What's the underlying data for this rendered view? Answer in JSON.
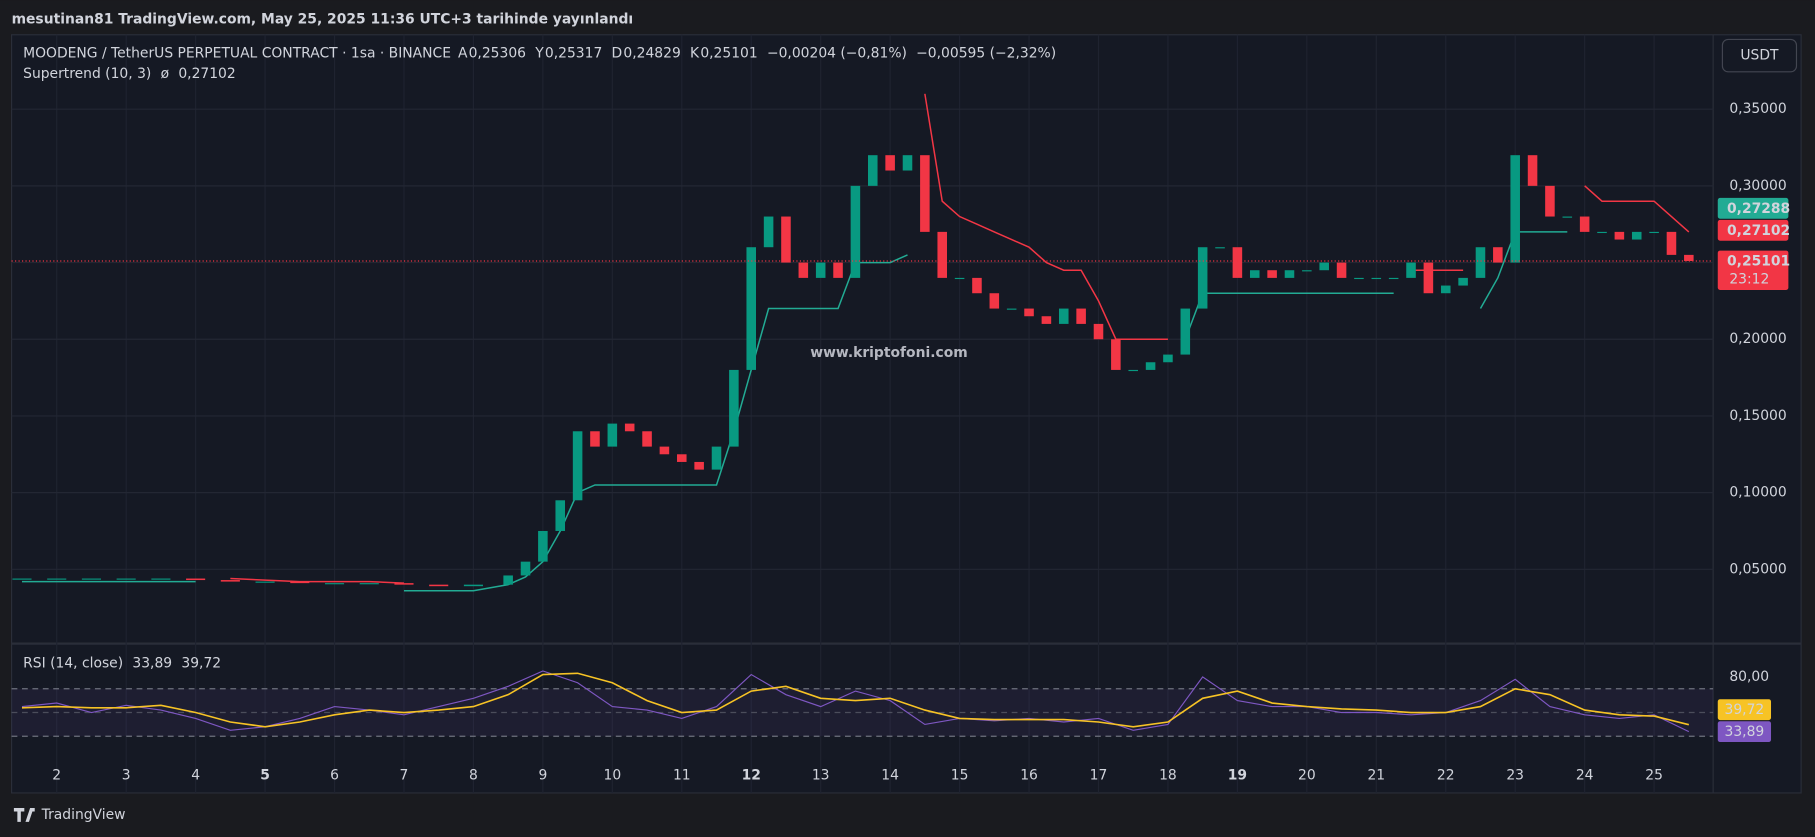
{
  "header": {
    "title": "mesutinan81 TradingView.com, May 25, 2025 11:36 UTC+3 tarihinde yayınlandı"
  },
  "currency_button": "USDT",
  "watermark": "www.kriptofoni.com",
  "footer": "TradingView",
  "chart_data": [
    {
      "type": "candlestick",
      "title": "MOODENG / TetherUS PERPETUAL CONTRACT · 1sa · BINANCE",
      "ohlc_legend": [
        {
          "key": "A",
          "value": "0,25306"
        },
        {
          "key": "Y",
          "value": "0,25317"
        },
        {
          "key": "D",
          "value": "0,24829"
        },
        {
          "key": "K",
          "value": "0,25101"
        }
      ],
      "changes": [
        "−0,00204 (−0,81%)",
        "−0,00595 (−2,32%)"
      ],
      "color_up": "#089981",
      "color_down": "#f23645",
      "x": [
        1.5,
        2,
        2.5,
        3,
        3.5,
        4,
        4.5,
        5,
        5.5,
        6,
        6.5,
        7,
        7.5,
        8,
        8.5,
        8.75,
        9,
        9.25,
        9.5,
        9.75,
        10,
        10.25,
        10.5,
        10.75,
        11,
        11.25,
        11.5,
        11.75,
        12,
        12.25,
        12.5,
        12.75,
        13,
        13.25,
        13.5,
        13.75,
        14,
        14.25,
        14.5,
        14.75,
        15,
        15.25,
        15.5,
        15.75,
        16,
        16.25,
        16.5,
        16.75,
        17,
        17.25,
        17.5,
        17.75,
        18,
        18.25,
        18.5,
        18.75,
        19,
        19.25,
        19.5,
        19.75,
        20,
        20.25,
        20.5,
        20.75,
        21,
        21.25,
        21.5,
        21.75,
        22,
        22.25,
        22.5,
        22.75,
        23,
        23.25,
        23.5,
        23.75,
        24,
        24.25,
        24.5,
        24.75,
        25,
        25.25,
        25.5
      ],
      "values": [
        0.044,
        0.044,
        0.044,
        0.044,
        0.044,
        0.043,
        0.042,
        0.042,
        0.041,
        0.041,
        0.041,
        0.04,
        0.039,
        0.04,
        0.046,
        0.055,
        0.075,
        0.095,
        0.14,
        0.13,
        0.145,
        0.14,
        0.13,
        0.125,
        0.12,
        0.115,
        0.13,
        0.18,
        0.26,
        0.28,
        0.25,
        0.24,
        0.25,
        0.24,
        0.3,
        0.32,
        0.31,
        0.32,
        0.27,
        0.24,
        0.24,
        0.23,
        0.22,
        0.22,
        0.215,
        0.21,
        0.22,
        0.21,
        0.2,
        0.18,
        0.18,
        0.185,
        0.19,
        0.22,
        0.26,
        0.26,
        0.24,
        0.245,
        0.24,
        0.245,
        0.245,
        0.25,
        0.24,
        0.24,
        0.24,
        0.24,
        0.25,
        0.23,
        0.235,
        0.24,
        0.26,
        0.25,
        0.32,
        0.3,
        0.28,
        0.28,
        0.27,
        0.27,
        0.265,
        0.27,
        0.27,
        0.255,
        0.251
      ],
      "supertrend": {
        "name": "Supertrend (10, 3)",
        "symbol": "ø",
        "value_label": "0,27102",
        "up_color": "#22ab94",
        "down_color": "#f23645",
        "up": [
          0.042,
          0.042,
          0.042,
          0.042,
          0.042,
          0.042,
          null,
          null,
          null,
          null,
          null,
          0.036,
          0.036,
          0.036,
          0.04,
          0.045,
          0.055,
          0.075,
          0.1,
          0.105,
          0.105,
          0.105,
          0.105,
          0.105,
          0.105,
          0.105,
          0.105,
          0.14,
          0.18,
          0.22,
          0.22,
          0.22,
          0.22,
          0.22,
          0.25,
          0.25,
          0.25,
          0.255,
          null,
          null,
          null,
          null,
          null,
          null,
          null,
          null,
          null,
          null,
          null,
          null,
          null,
          null,
          null,
          0.2,
          0.23,
          0.23,
          0.23,
          0.23,
          0.23,
          0.23,
          0.23,
          0.23,
          0.23,
          0.23,
          0.23,
          0.23,
          null,
          null,
          null,
          null,
          0.22,
          0.24,
          0.27,
          0.27,
          0.27,
          0.27,
          null,
          null,
          null,
          null,
          null,
          null,
          null
        ],
        "down": [
          null,
          null,
          null,
          null,
          null,
          null,
          0.044,
          0.043,
          0.042,
          0.042,
          0.042,
          0.041,
          null,
          null,
          null,
          null,
          null,
          null,
          null,
          null,
          null,
          null,
          null,
          null,
          null,
          null,
          null,
          null,
          null,
          null,
          null,
          null,
          null,
          null,
          null,
          null,
          null,
          null,
          0.36,
          0.29,
          0.28,
          0.275,
          0.27,
          0.265,
          0.26,
          0.25,
          0.245,
          0.245,
          0.225,
          0.2,
          0.2,
          0.2,
          0.2,
          null,
          null,
          null,
          null,
          null,
          null,
          null,
          null,
          null,
          null,
          null,
          null,
          null,
          0.245,
          0.245,
          0.245,
          0.245,
          null,
          null,
          null,
          null,
          null,
          null,
          0.3,
          0.29,
          0.29,
          0.29,
          0.29,
          0.28,
          0.27
        ]
      },
      "price_tags": [
        {
          "value": 0.27288,
          "label": "0,27288",
          "color": "#22ab94"
        },
        {
          "value": 0.27102,
          "label": "0,27102",
          "color": "#f23645"
        },
        {
          "value": 0.25101,
          "label": "0,25101",
          "sublabel": "23:12",
          "color": "#f23645"
        }
      ],
      "xlim": [
        1.35,
        25.85
      ],
      "ylim": [
        0.0023,
        0.3985
      ],
      "yticks": [
        {
          "value": 0.05,
          "label": "0,05000"
        },
        {
          "value": 0.1,
          "label": "0,10000"
        },
        {
          "value": 0.15,
          "label": "0,15000"
        },
        {
          "value": 0.2,
          "label": "0,20000"
        },
        {
          "value": 0.25,
          "label": "0,25000"
        },
        {
          "value": 0.3,
          "label": "0,30000"
        },
        {
          "value": 0.35,
          "label": "0,35000"
        }
      ],
      "grid": true
    },
    {
      "type": "line",
      "title": "RSI (14, close)",
      "x": [
        1.5,
        2,
        2.5,
        3,
        3.5,
        4,
        4.5,
        5,
        5.5,
        6,
        6.5,
        7,
        7.5,
        8,
        8.5,
        9,
        9.5,
        10,
        10.5,
        11,
        11.5,
        12,
        12.5,
        13,
        13.5,
        14,
        14.5,
        15,
        15.5,
        16,
        16.5,
        17,
        17.5,
        18,
        18.5,
        19,
        19.5,
        20,
        20.5,
        21,
        21.5,
        22,
        22.5,
        23,
        23.5,
        24,
        24.5,
        25,
        25.5
      ],
      "series": [
        {
          "color": "#7e57c2",
          "value_label": "33,89",
          "values": [
            55,
            58,
            50,
            56,
            52,
            45,
            35,
            38,
            45,
            55,
            52,
            48,
            55,
            62,
            72,
            85,
            75,
            55,
            52,
            45,
            55,
            82,
            65,
            55,
            68,
            60,
            40,
            45,
            43,
            45,
            42,
            45,
            35,
            40,
            80,
            60,
            55,
            55,
            50,
            50,
            48,
            50,
            60,
            78,
            55,
            48,
            45,
            48,
            33.89
          ]
        },
        {
          "color": "#f7c325",
          "value_label": "39,72",
          "values": [
            54,
            55,
            54,
            54,
            56,
            50,
            42,
            38,
            42,
            48,
            52,
            50,
            52,
            55,
            65,
            82,
            83,
            75,
            60,
            50,
            52,
            68,
            72,
            62,
            60,
            62,
            52,
            45,
            44,
            44,
            44,
            42,
            38,
            42,
            62,
            68,
            58,
            55,
            53,
            52,
            50,
            50,
            55,
            70,
            65,
            52,
            48,
            47,
            39.72
          ]
        }
      ],
      "levels": [
        70,
        50,
        30
      ],
      "xlim": [
        1.35,
        25.85
      ],
      "ylim": [
        11.5,
        107
      ],
      "yticks": [
        {
          "value": 80,
          "label": "80,00"
        }
      ],
      "xticks": [
        2,
        3,
        4,
        5,
        6,
        7,
        8,
        9,
        10,
        11,
        12,
        13,
        14,
        15,
        16,
        17,
        18,
        19,
        20,
        21,
        22,
        23,
        24,
        25
      ],
      "xticks_bold": [
        5,
        12,
        19
      ]
    }
  ]
}
